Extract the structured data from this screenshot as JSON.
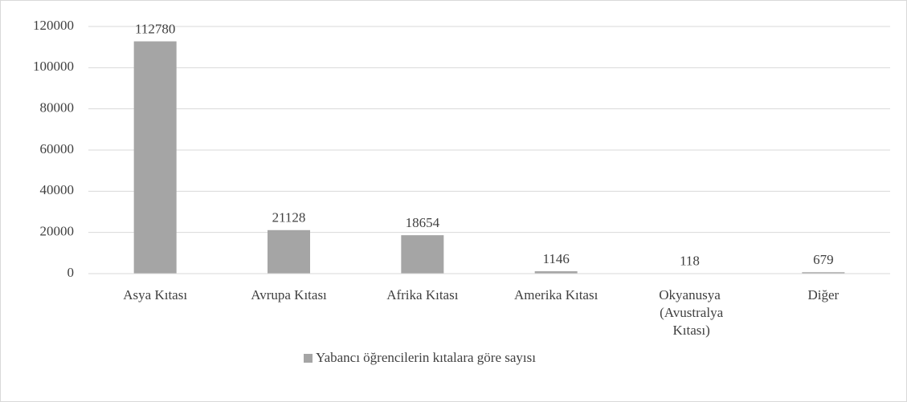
{
  "chart_data": {
    "type": "bar",
    "categories": [
      "Asya Kıtası",
      "Avrupa Kıtası",
      "Afrika Kıtası",
      "Amerika Kıtası",
      "Okyanusya (Avustralya Kıtası)",
      "Diğer"
    ],
    "series": [
      {
        "name": "Yabancı öğrencilerin kıtalara göre sayısı",
        "color": "#a5a5a5",
        "values": [
          112780,
          21128,
          18654,
          1146,
          118,
          679
        ]
      }
    ],
    "ylim": [
      0,
      120000
    ],
    "yticks": [
      0,
      20000,
      40000,
      60000,
      80000,
      100000,
      120000
    ],
    "grid": true,
    "legend": "bottom"
  }
}
